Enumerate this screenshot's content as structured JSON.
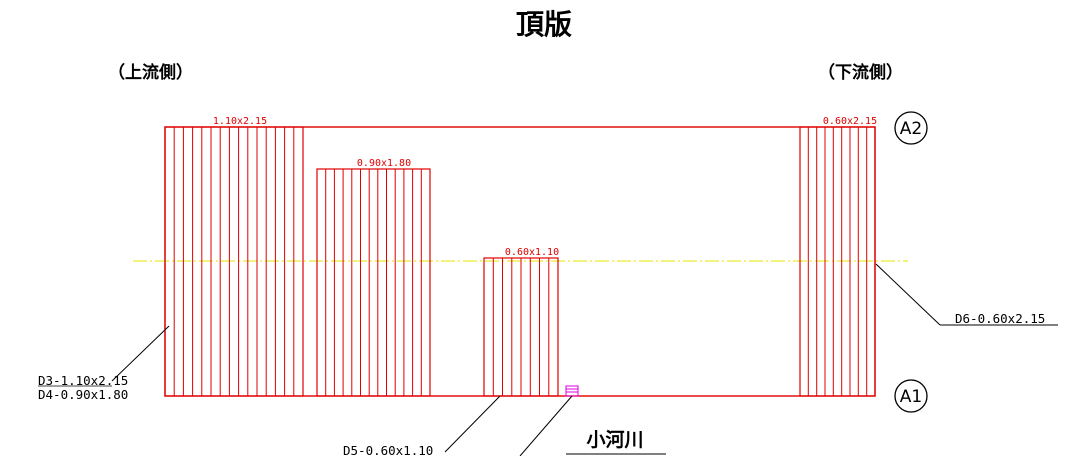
{
  "title": "頂版",
  "upstream_label": "（上流側）",
  "downstream_label": "（下流側）",
  "openings": [
    {
      "size": "1.10x2.15"
    },
    {
      "size": "0.90x1.80"
    },
    {
      "size": "0.60x1.10"
    },
    {
      "size": "0.60x2.15"
    }
  ],
  "callouts": {
    "d3": "D3-1.10x2.15",
    "d4": "D4-0.90x1.80",
    "d5": "D5-0.60x1.10",
    "d6": "D6-0.60x2.15"
  },
  "axes": {
    "a1": "A1",
    "a2": "A2"
  },
  "river_label": "小河川",
  "colors": {
    "outline": "#e00000",
    "centerline": "#e6e600",
    "pipe": "#e000e0",
    "leader": "#000000"
  }
}
